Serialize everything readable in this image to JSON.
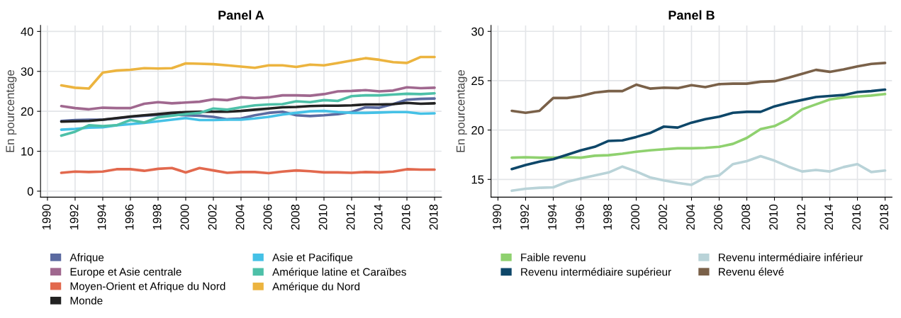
{
  "chart_data": [
    {
      "type": "line",
      "title": "Panel A",
      "ylabel": "En pourcentage",
      "x": [
        1991,
        1992,
        1993,
        1994,
        1995,
        1996,
        1997,
        1998,
        1999,
        2000,
        2001,
        2002,
        2003,
        2004,
        2005,
        2006,
        2007,
        2008,
        2009,
        2010,
        2011,
        2012,
        2013,
        2014,
        2015,
        2016,
        2017,
        2018
      ],
      "xlim": [
        1989.5,
        2018.5
      ],
      "xticks": [
        1990,
        1992,
        1994,
        1996,
        1998,
        2000,
        2002,
        2004,
        2006,
        2008,
        2010,
        2012,
        2014,
        2016,
        2018
      ],
      "ylim": [
        -1.5,
        41.5
      ],
      "yticks": [
        0,
        10,
        20,
        30,
        40
      ],
      "grid": true,
      "legend": "bottom",
      "series": [
        {
          "name": "Afrique",
          "color": "#5b6aa0",
          "values": [
            17.6,
            17.8,
            17.9,
            17.9,
            18.2,
            18.6,
            18.9,
            19.1,
            19.2,
            19.0,
            18.9,
            18.6,
            18.0,
            18.2,
            19.0,
            19.6,
            19.9,
            19.0,
            18.8,
            19.0,
            19.3,
            19.8,
            21.0,
            20.9,
            21.8,
            22.9,
            23.1,
            23.2
          ]
        },
        {
          "name": "Europe et Asie centrale",
          "color": "#a0688f",
          "values": [
            21.3,
            20.8,
            20.5,
            20.9,
            20.8,
            20.8,
            21.9,
            22.3,
            22.0,
            22.2,
            22.4,
            23.0,
            22.8,
            23.5,
            23.3,
            23.5,
            24.0,
            24.0,
            23.9,
            24.3,
            25.0,
            25.1,
            25.3,
            25.0,
            25.2,
            26.0,
            25.8,
            25.9
          ]
        },
        {
          "name": "Moyen-Orient et Afrique du Nord",
          "color": "#e2694e",
          "values": [
            4.6,
            4.9,
            4.8,
            4.9,
            5.5,
            5.5,
            5.1,
            5.6,
            5.8,
            4.7,
            5.8,
            5.2,
            4.6,
            4.8,
            4.8,
            4.5,
            4.9,
            5.2,
            5.0,
            4.7,
            4.7,
            4.6,
            4.8,
            4.7,
            4.9,
            5.5,
            5.4,
            5.4
          ]
        },
        {
          "name": "Monde",
          "color": "#222222",
          "values": [
            17.4,
            17.5,
            17.6,
            17.9,
            18.3,
            18.7,
            19.0,
            19.3,
            19.6,
            19.8,
            19.9,
            19.9,
            19.9,
            20.1,
            20.4,
            20.7,
            21.0,
            21.1,
            21.3,
            21.4,
            21.4,
            21.5,
            21.7,
            21.7,
            21.8,
            22.1,
            21.9,
            22.0
          ]
        },
        {
          "name": "Asie et Pacifique",
          "color": "#45c1e6",
          "values": [
            15.4,
            15.6,
            15.9,
            16.0,
            16.5,
            16.8,
            17.1,
            17.5,
            17.9,
            18.3,
            17.8,
            17.8,
            17.9,
            17.9,
            18.2,
            18.6,
            19.2,
            19.6,
            20.0,
            20.1,
            19.8,
            19.6,
            19.6,
            19.7,
            19.8,
            19.8,
            19.4,
            19.5
          ]
        },
        {
          "name": "Amérique latine et Caraïbes",
          "color": "#4dc0a8",
          "values": [
            13.9,
            14.9,
            16.5,
            16.3,
            16.5,
            17.8,
            17.2,
            18.5,
            18.9,
            19.3,
            19.6,
            20.7,
            20.4,
            21.0,
            21.5,
            21.7,
            21.8,
            22.5,
            22.3,
            22.8,
            22.6,
            23.8,
            24.0,
            24.0,
            24.2,
            24.4,
            24.3,
            24.5
          ]
        },
        {
          "name": "Amérique du Nord",
          "color": "#ecb43f",
          "values": [
            26.5,
            25.9,
            25.7,
            29.7,
            30.2,
            30.4,
            30.8,
            30.7,
            30.8,
            32.0,
            31.9,
            31.8,
            31.5,
            31.2,
            30.9,
            31.5,
            31.5,
            31.1,
            31.7,
            31.5,
            32.1,
            32.7,
            33.3,
            32.9,
            32.3,
            32.1,
            33.6,
            33.6
          ]
        }
      ]
    },
    {
      "type": "line",
      "title": "Panel B",
      "ylabel": "En pourcentage",
      "x": [
        1991,
        1992,
        1993,
        1994,
        1995,
        1996,
        1997,
        1998,
        1999,
        2000,
        2001,
        2002,
        2003,
        2004,
        2005,
        2006,
        2007,
        2008,
        2009,
        2010,
        2011,
        2012,
        2013,
        2014,
        2015,
        2016,
        2017,
        2018
      ],
      "xlim": [
        1989.5,
        2018.5
      ],
      "xticks": [
        1990,
        1992,
        1994,
        1996,
        1998,
        2000,
        2002,
        2004,
        2006,
        2008,
        2010,
        2012,
        2014,
        2016,
        2018
      ],
      "ylim": [
        13.2,
        30.6
      ],
      "yticks": [
        15,
        20,
        25,
        30
      ],
      "grid": true,
      "legend": "bottom",
      "series": [
        {
          "name": "Faible revenu",
          "color": "#8fd16f",
          "values": [
            17.2,
            17.25,
            17.2,
            17.2,
            17.25,
            17.2,
            17.4,
            17.45,
            17.6,
            17.8,
            17.95,
            18.05,
            18.15,
            18.15,
            18.2,
            18.3,
            18.6,
            19.2,
            20.1,
            20.4,
            21.1,
            22.1,
            22.6,
            23.1,
            23.3,
            23.4,
            23.5,
            23.65
          ]
        },
        {
          "name": "Revenu intermédiaire supérieur",
          "color": "#0e4769",
          "values": [
            16.05,
            16.45,
            16.8,
            17.05,
            17.5,
            17.95,
            18.3,
            18.9,
            18.95,
            19.3,
            19.7,
            20.35,
            20.25,
            20.75,
            21.1,
            21.35,
            21.75,
            21.85,
            21.85,
            22.4,
            22.75,
            23.05,
            23.35,
            23.45,
            23.55,
            23.85,
            23.95,
            24.1
          ]
        },
        {
          "name": "Revenu intermédiaire inférieur",
          "color": "#b9d3d8",
          "values": [
            13.85,
            14.05,
            14.15,
            14.2,
            14.75,
            15.1,
            15.4,
            15.7,
            16.3,
            15.8,
            15.2,
            14.9,
            14.65,
            14.45,
            15.2,
            15.4,
            16.55,
            16.85,
            17.35,
            16.9,
            16.3,
            15.8,
            15.95,
            15.8,
            16.25,
            16.55,
            15.75,
            15.9
          ]
        },
        {
          "name": "Revenu élevé",
          "color": "#7a6149",
          "values": [
            21.95,
            21.75,
            21.95,
            23.25,
            23.25,
            23.45,
            23.8,
            23.95,
            23.95,
            24.6,
            24.2,
            24.3,
            24.25,
            24.55,
            24.35,
            24.65,
            24.7,
            24.7,
            24.9,
            24.95,
            25.3,
            25.7,
            26.1,
            25.9,
            26.15,
            26.45,
            26.7,
            26.8
          ]
        }
      ]
    }
  ]
}
